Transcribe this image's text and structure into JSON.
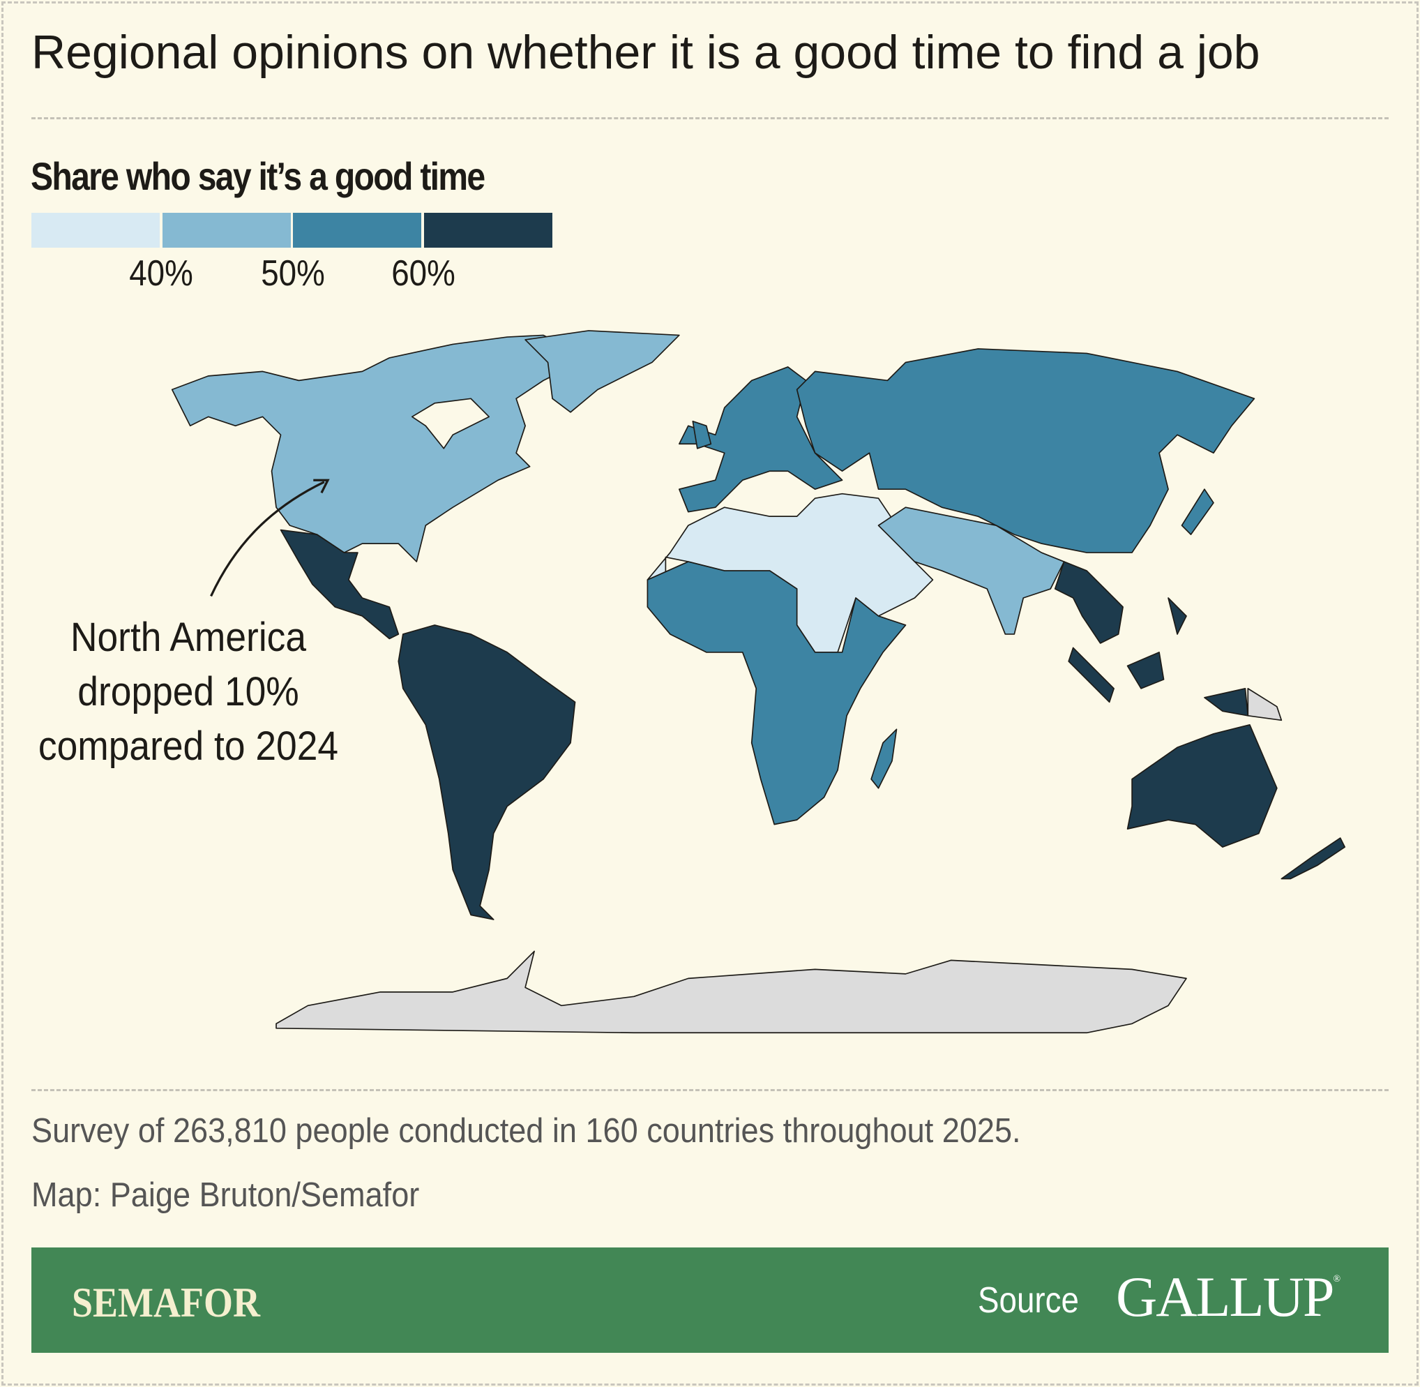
{
  "title": "Regional opinions on whether it is a good time to find a job",
  "legend": {
    "title": "Share who say it’s a good time",
    "bins": [
      "#d8eaf3",
      "#85b9d2",
      "#3d84a3",
      "#1d3b4d"
    ],
    "ticks": [
      "40%",
      "50%",
      "60%"
    ]
  },
  "map": {
    "no_data_color": "#dcdcdc",
    "regions": [
      {
        "id": "north-america",
        "bin": 1
      },
      {
        "id": "latin-america",
        "bin": 3
      },
      {
        "id": "europe",
        "bin": 2
      },
      {
        "id": "russia-central-east-asia",
        "bin": 2
      },
      {
        "id": "middle-east-north-africa",
        "bin": 0
      },
      {
        "id": "south-asia",
        "bin": 1
      },
      {
        "id": "sub-saharan-africa",
        "bin": 2
      },
      {
        "id": "southeast-asia",
        "bin": 3
      },
      {
        "id": "oceania",
        "bin": 3
      }
    ],
    "annotation": [
      "North America",
      "dropped 10%",
      "compared to 2024"
    ]
  },
  "notes": {
    "survey": "Survey of 263,810 people conducted in 160 countries throughout 2025.",
    "credit": "Map: Paige Bruton/Semafor"
  },
  "footer": {
    "brand": "SEMAFOR",
    "source_label": "Source",
    "source_logo": "GALLUP",
    "registered": "®"
  }
}
